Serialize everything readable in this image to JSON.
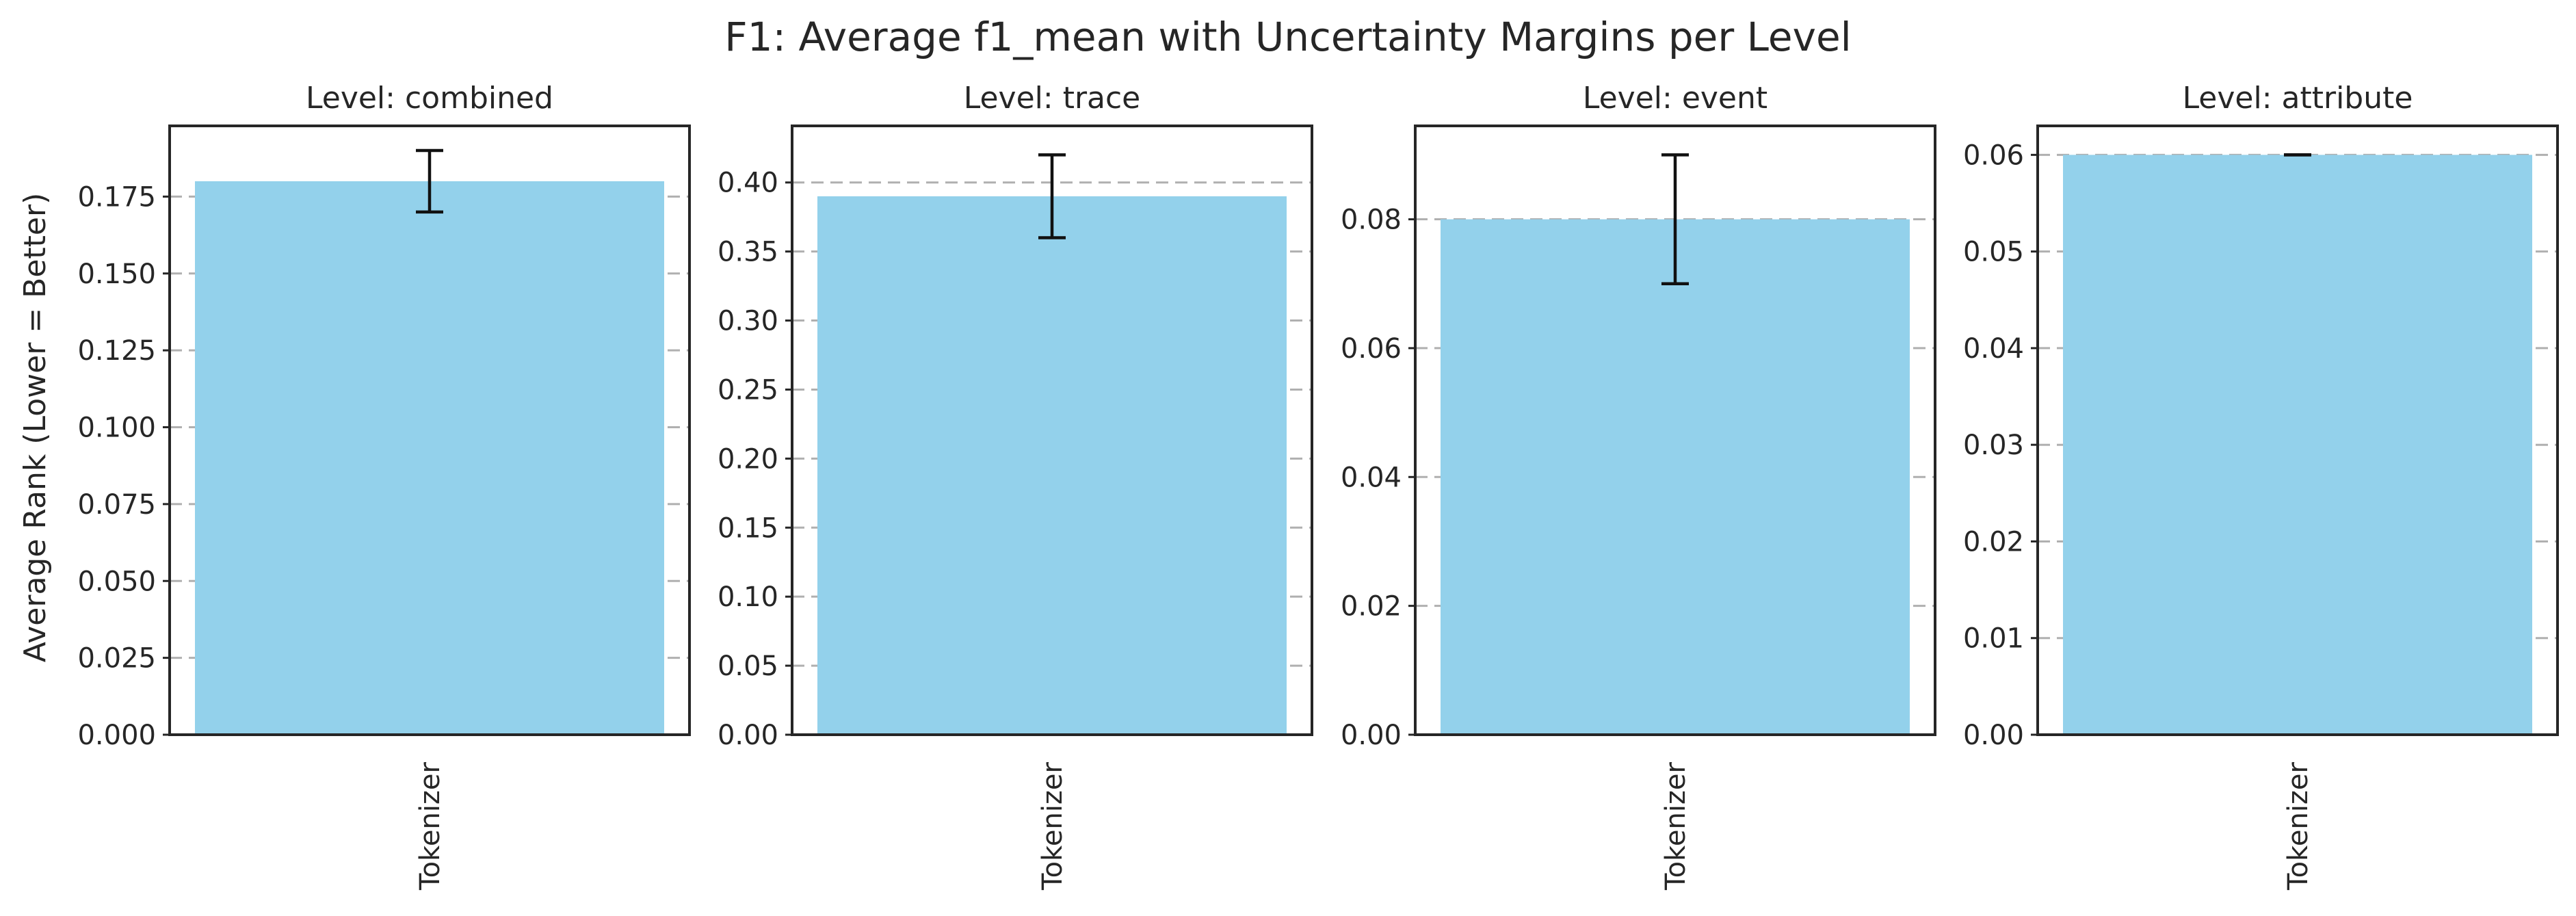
{
  "chart_data": {
    "title": "F1: Average f1_mean with Uncertainty Margins per Level",
    "ylabel": "Average Rank (Lower = Better)",
    "bar_color": "#93d1eb",
    "error_color": "#111111",
    "grid": true,
    "grid_axis": "y",
    "subplots": [
      {
        "type": "bar",
        "title": "Level: combined",
        "categories": [
          "Tokenizer"
        ],
        "values": [
          0.18
        ],
        "error_low": [
          0.17
        ],
        "error_high": [
          0.19
        ],
        "ylim": [
          0,
          0.198
        ],
        "yticks": [
          0.0,
          0.025,
          0.05,
          0.075,
          0.1,
          0.125,
          0.15,
          0.175
        ],
        "ytick_labels": [
          "0.000",
          "0.025",
          "0.050",
          "0.075",
          "0.100",
          "0.125",
          "0.150",
          "0.175"
        ]
      },
      {
        "type": "bar",
        "title": "Level: trace",
        "categories": [
          "Tokenizer"
        ],
        "values": [
          0.39
        ],
        "error_low": [
          0.36
        ],
        "error_high": [
          0.42
        ],
        "ylim": [
          0,
          0.441
        ],
        "yticks": [
          0.0,
          0.05,
          0.1,
          0.15,
          0.2,
          0.25,
          0.3,
          0.35,
          0.4
        ],
        "ytick_labels": [
          "0.00",
          "0.05",
          "0.10",
          "0.15",
          "0.20",
          "0.25",
          "0.30",
          "0.35",
          "0.40"
        ]
      },
      {
        "type": "bar",
        "title": "Level: event",
        "categories": [
          "Tokenizer"
        ],
        "values": [
          0.08
        ],
        "error_low": [
          0.07
        ],
        "error_high": [
          0.09
        ],
        "ylim": [
          0,
          0.0945
        ],
        "yticks": [
          0.0,
          0.02,
          0.04,
          0.06,
          0.08
        ],
        "ytick_labels": [
          "0.00",
          "0.02",
          "0.04",
          "0.06",
          "0.08"
        ]
      },
      {
        "type": "bar",
        "title": "Level: attribute",
        "categories": [
          "Tokenizer"
        ],
        "values": [
          0.06
        ],
        "error_low": [
          0.06
        ],
        "error_high": [
          0.06
        ],
        "ylim": [
          0,
          0.063
        ],
        "yticks": [
          0.0,
          0.01,
          0.02,
          0.03,
          0.04,
          0.05,
          0.06
        ],
        "ytick_labels": [
          "0.00",
          "0.01",
          "0.02",
          "0.03",
          "0.04",
          "0.05",
          "0.06"
        ]
      }
    ]
  }
}
